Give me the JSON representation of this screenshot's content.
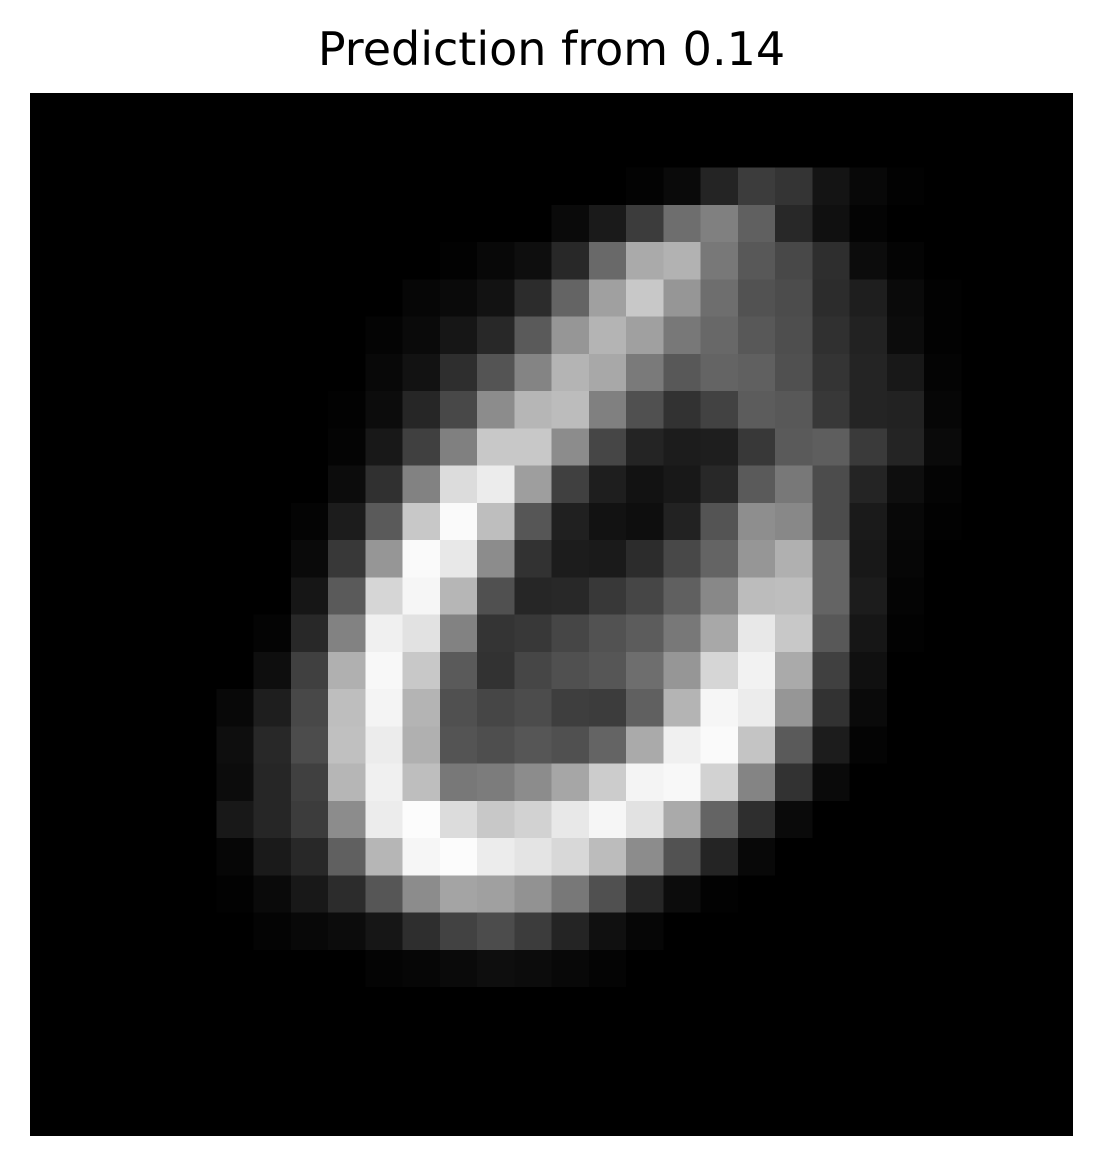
{
  "chart_data": {
    "type": "heatmap",
    "title": "Prediction from 0.14",
    "xlabel": "",
    "ylabel": "",
    "colormap": "gray",
    "axes_visible": false,
    "value_range": [
      0,
      255
    ],
    "rows": 28,
    "cols": 28,
    "grid": [
      [
        0,
        0,
        0,
        0,
        0,
        0,
        0,
        0,
        0,
        0,
        0,
        0,
        0,
        0,
        0,
        0,
        0,
        0,
        0,
        0,
        0,
        0,
        0,
        0,
        0,
        0,
        0,
        0
      ],
      [
        0,
        0,
        0,
        0,
        0,
        0,
        0,
        0,
        0,
        0,
        0,
        0,
        0,
        0,
        0,
        0,
        0,
        0,
        0,
        0,
        0,
        0,
        0,
        0,
        0,
        0,
        0,
        0
      ],
      [
        0,
        0,
        0,
        0,
        0,
        0,
        0,
        0,
        0,
        0,
        0,
        0,
        0,
        0,
        0,
        0,
        3,
        10,
        36,
        60,
        52,
        20,
        8,
        2,
        0,
        0,
        0,
        0
      ],
      [
        0,
        0,
        0,
        0,
        0,
        0,
        0,
        0,
        0,
        0,
        0,
        0,
        0,
        0,
        10,
        26,
        60,
        110,
        128,
        96,
        40,
        16,
        4,
        0,
        0,
        0,
        0,
        0
      ],
      [
        0,
        0,
        0,
        0,
        0,
        0,
        0,
        0,
        0,
        0,
        0,
        2,
        8,
        14,
        40,
        105,
        170,
        178,
        120,
        88,
        72,
        46,
        12,
        4,
        0,
        0,
        0,
        0
      ],
      [
        0,
        0,
        0,
        0,
        0,
        0,
        0,
        0,
        0,
        0,
        6,
        10,
        18,
        44,
        100,
        160,
        200,
        150,
        110,
        82,
        76,
        44,
        30,
        10,
        2,
        0,
        0,
        0
      ],
      [
        0,
        0,
        0,
        0,
        0,
        0,
        0,
        0,
        0,
        4,
        10,
        22,
        40,
        90,
        150,
        180,
        160,
        120,
        104,
        88,
        78,
        48,
        34,
        12,
        2,
        0,
        0,
        0
      ],
      [
        0,
        0,
        0,
        0,
        0,
        0,
        0,
        0,
        0,
        8,
        18,
        46,
        84,
        132,
        180,
        168,
        122,
        88,
        100,
        96,
        80,
        52,
        36,
        24,
        4,
        0,
        0,
        0
      ],
      [
        0,
        0,
        0,
        0,
        0,
        0,
        0,
        0,
        2,
        12,
        38,
        72,
        140,
        182,
        188,
        128,
        80,
        50,
        66,
        92,
        88,
        56,
        36,
        34,
        6,
        0,
        0,
        0
      ],
      [
        0,
        0,
        0,
        0,
        0,
        0,
        0,
        0,
        4,
        24,
        64,
        128,
        200,
        200,
        140,
        70,
        36,
        28,
        30,
        56,
        90,
        94,
        58,
        36,
        10,
        0,
        0,
        0
      ],
      [
        0,
        0,
        0,
        0,
        0,
        0,
        0,
        0,
        12,
        48,
        130,
        220,
        236,
        158,
        64,
        30,
        18,
        24,
        40,
        90,
        120,
        76,
        36,
        14,
        4,
        0,
        0,
        0
      ],
      [
        0,
        0,
        0,
        0,
        0,
        0,
        0,
        4,
        28,
        90,
        200,
        250,
        190,
        86,
        32,
        18,
        14,
        34,
        84,
        142,
        136,
        76,
        26,
        8,
        2,
        0,
        0,
        0
      ],
      [
        0,
        0,
        0,
        0,
        0,
        0,
        0,
        10,
        56,
        150,
        250,
        232,
        140,
        50,
        28,
        26,
        44,
        72,
        100,
        150,
        176,
        100,
        24,
        6,
        0,
        0,
        0,
        0
      ],
      [
        0,
        0,
        0,
        0,
        0,
        0,
        0,
        22,
        90,
        214,
        246,
        182,
        80,
        38,
        40,
        56,
        70,
        96,
        136,
        188,
        190,
        100,
        28,
        4,
        0,
        0,
        0,
        0
      ],
      [
        0,
        0,
        0,
        0,
        0,
        0,
        4,
        40,
        130,
        240,
        226,
        130,
        52,
        56,
        70,
        82,
        92,
        120,
        168,
        232,
        200,
        88,
        22,
        2,
        0,
        0,
        0,
        0
      ],
      [
        0,
        0,
        0,
        0,
        0,
        0,
        14,
        64,
        176,
        248,
        200,
        90,
        50,
        70,
        80,
        86,
        110,
        150,
        214,
        242,
        170,
        64,
        16,
        0,
        0,
        0,
        0,
        0
      ],
      [
        0,
        0,
        0,
        0,
        0,
        8,
        30,
        72,
        190,
        244,
        180,
        80,
        70,
        76,
        62,
        60,
        96,
        180,
        246,
        236,
        150,
        50,
        10,
        0,
        0,
        0,
        0,
        0
      ],
      [
        0,
        0,
        0,
        0,
        0,
        14,
        40,
        76,
        192,
        236,
        176,
        84,
        78,
        86,
        80,
        100,
        170,
        240,
        250,
        196,
        90,
        28,
        4,
        0,
        0,
        0,
        0,
        0
      ],
      [
        0,
        0,
        0,
        0,
        0,
        12,
        38,
        64,
        182,
        240,
        190,
        120,
        124,
        140,
        166,
        204,
        244,
        248,
        210,
        132,
        50,
        10,
        0,
        0,
        0,
        0,
        0,
        0
      ],
      [
        0,
        0,
        0,
        0,
        0,
        24,
        38,
        60,
        140,
        236,
        252,
        220,
        200,
        210,
        232,
        246,
        226,
        170,
        100,
        46,
        10,
        0,
        0,
        0,
        0,
        0,
        0,
        0
      ],
      [
        0,
        0,
        0,
        0,
        0,
        6,
        26,
        40,
        96,
        182,
        246,
        252,
        236,
        228,
        216,
        188,
        140,
        82,
        36,
        8,
        0,
        0,
        0,
        0,
        0,
        0,
        0,
        0
      ],
      [
        0,
        0,
        0,
        0,
        0,
        2,
        10,
        24,
        44,
        86,
        140,
        164,
        160,
        146,
        120,
        80,
        38,
        12,
        2,
        0,
        0,
        0,
        0,
        0,
        0,
        0,
        0,
        0
      ],
      [
        0,
        0,
        0,
        0,
        0,
        0,
        4,
        8,
        12,
        22,
        46,
        66,
        76,
        60,
        36,
        16,
        6,
        0,
        0,
        0,
        0,
        0,
        0,
        0,
        0,
        0,
        0,
        0
      ],
      [
        0,
        0,
        0,
        0,
        0,
        0,
        0,
        0,
        0,
        4,
        6,
        10,
        14,
        12,
        8,
        4,
        0,
        0,
        0,
        0,
        0,
        0,
        0,
        0,
        0,
        0,
        0,
        0
      ],
      [
        0,
        0,
        0,
        0,
        0,
        0,
        0,
        0,
        0,
        0,
        0,
        0,
        0,
        0,
        0,
        0,
        0,
        0,
        0,
        0,
        0,
        0,
        0,
        0,
        0,
        0,
        0,
        0
      ],
      [
        0,
        0,
        0,
        0,
        0,
        0,
        0,
        0,
        0,
        0,
        0,
        0,
        0,
        0,
        0,
        0,
        0,
        0,
        0,
        0,
        0,
        0,
        0,
        0,
        0,
        0,
        0,
        0
      ],
      [
        0,
        0,
        0,
        0,
        0,
        0,
        0,
        0,
        0,
        0,
        0,
        0,
        0,
        0,
        0,
        0,
        0,
        0,
        0,
        0,
        0,
        0,
        0,
        0,
        0,
        0,
        0,
        0
      ],
      [
        0,
        0,
        0,
        0,
        0,
        0,
        0,
        0,
        0,
        0,
        0,
        0,
        0,
        0,
        0,
        0,
        0,
        0,
        0,
        0,
        0,
        0,
        0,
        0,
        0,
        0,
        0,
        0
      ]
    ]
  }
}
